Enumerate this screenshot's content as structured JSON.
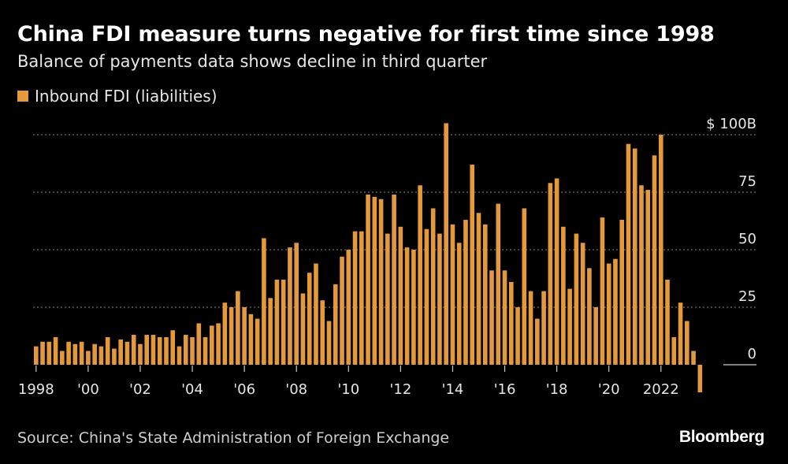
{
  "title": "China FDI measure turns negative for first time since 1998",
  "subtitle": "Balance of payments data shows decline in third quarter",
  "source": "Source: China's State Administration of Foreign Exchange",
  "brand": "Bloomberg",
  "colors": {
    "background": "#000000",
    "bar": "#e4993a",
    "grid": "#8a8a8a",
    "text": "#e6e6e6"
  },
  "chart_data": {
    "type": "bar",
    "legend": "Inbound FDI (liabilities)",
    "legend_position": "top-left",
    "y_axis_position": "right",
    "grid": true,
    "ylim": [
      -10,
      105
    ],
    "y_ticks": [
      {
        "value": 100,
        "label": "$ 100B"
      },
      {
        "value": 75,
        "label": "75"
      },
      {
        "value": 50,
        "label": "50"
      },
      {
        "value": 25,
        "label": "25"
      },
      {
        "value": 0,
        "label": "0"
      }
    ],
    "x_ticks": [
      {
        "year": 1998,
        "label": "1998"
      },
      {
        "year": 2000,
        "label": "'00"
      },
      {
        "year": 2002,
        "label": "'02"
      },
      {
        "year": 2004,
        "label": "'04"
      },
      {
        "year": 2006,
        "label": "'06"
      },
      {
        "year": 2008,
        "label": "'08"
      },
      {
        "year": 2010,
        "label": "'10"
      },
      {
        "year": 2012,
        "label": "'12"
      },
      {
        "year": 2014,
        "label": "'14"
      },
      {
        "year": 2016,
        "label": "'16"
      },
      {
        "year": 2018,
        "label": "'18"
      },
      {
        "year": 2020,
        "label": "'20"
      },
      {
        "year": 2022,
        "label": "2022"
      }
    ],
    "series": [
      {
        "name": "Inbound FDI (liabilities)",
        "start": "1998 Q1",
        "frequency": "quarterly",
        "values": [
          8,
          10,
          10,
          12,
          6,
          10,
          9,
          10,
          6,
          9,
          8,
          12,
          7,
          11,
          10,
          13,
          9,
          13,
          13,
          12,
          12,
          15,
          8,
          13,
          12,
          18,
          12,
          17,
          18,
          27,
          25,
          32,
          25,
          22,
          20,
          55,
          29,
          37,
          37,
          51,
          53,
          31,
          40,
          44,
          28,
          19,
          35,
          47,
          50,
          58,
          58,
          74,
          73,
          72,
          57,
          74,
          60,
          51,
          50,
          78,
          59,
          68,
          57,
          105,
          61,
          53,
          63,
          87,
          66,
          61,
          41,
          70,
          41,
          36,
          25,
          68,
          32,
          20,
          32,
          79,
          81,
          60,
          33,
          57,
          53,
          42,
          25,
          64,
          44,
          46,
          63,
          96,
          94,
          78,
          76,
          91,
          100,
          37,
          12,
          27,
          19,
          6,
          -12
        ]
      }
    ]
  }
}
